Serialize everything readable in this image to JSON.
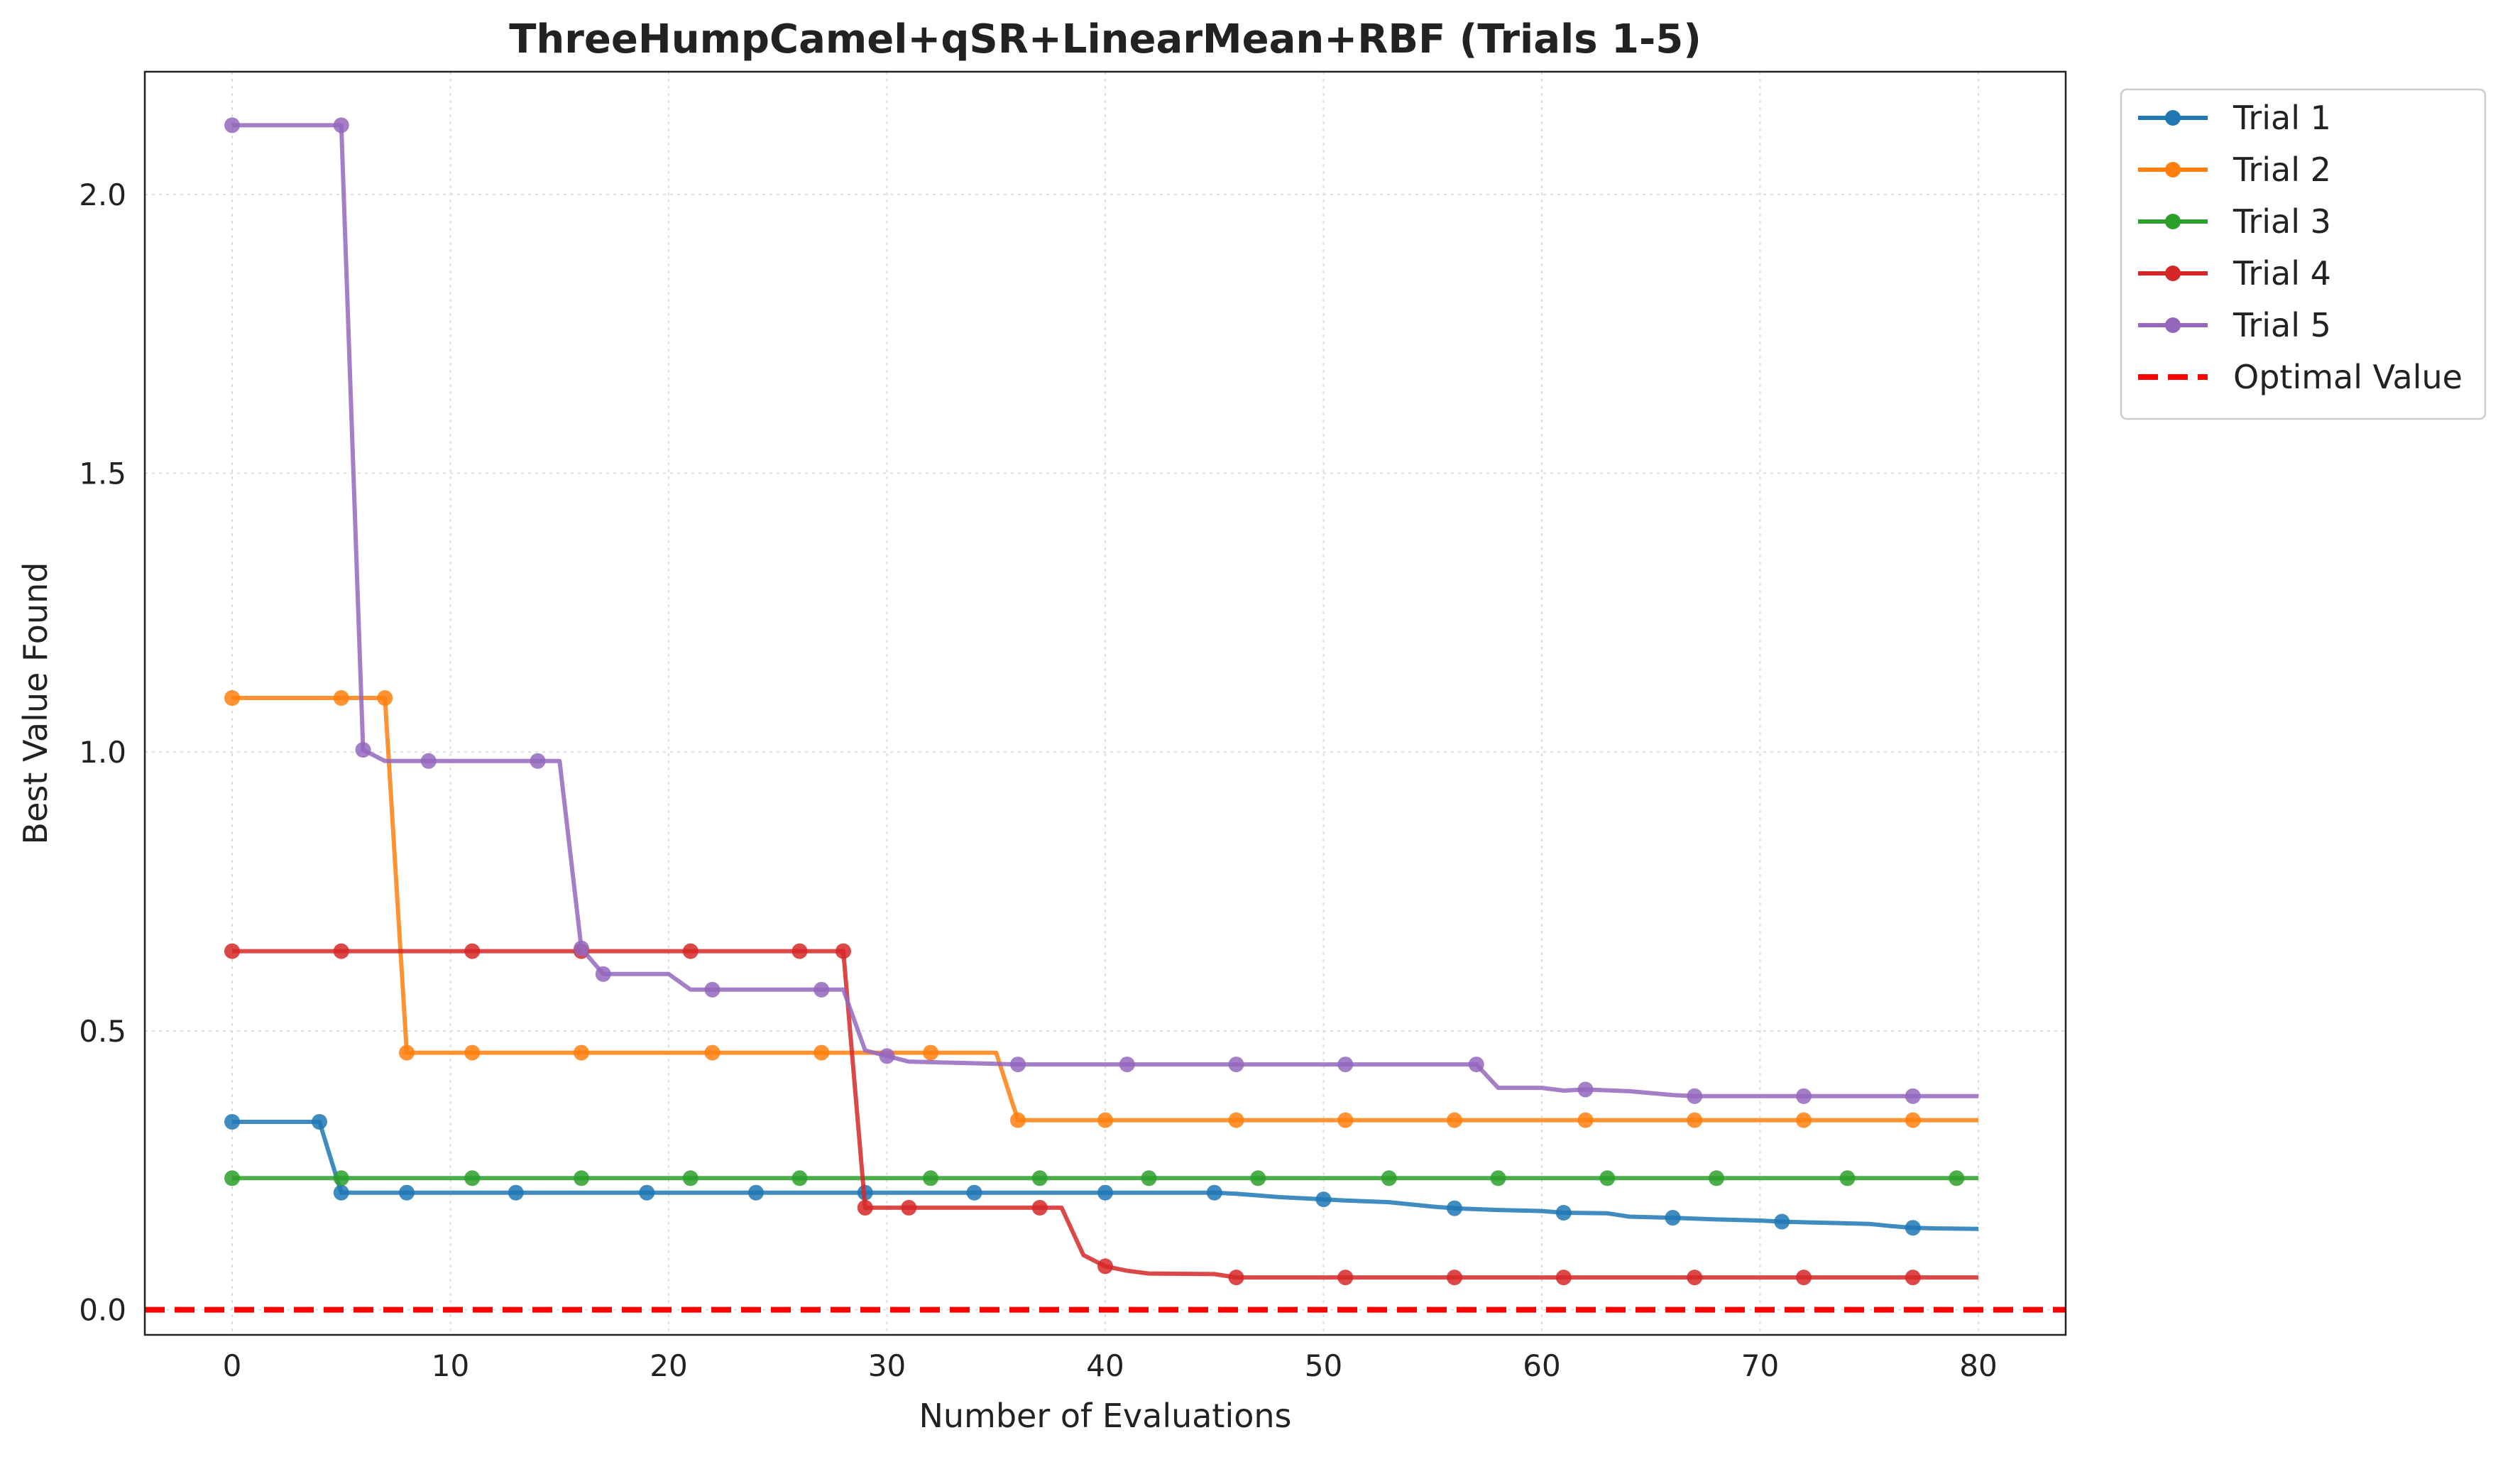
{
  "chart_data": {
    "type": "line",
    "title": "ThreeHumpCamel+qSR+LinearMean+RBF (Trials 1-5)",
    "xlabel": "Number of Evaluations",
    "ylabel": "Best Value Found",
    "xlim": [
      -4,
      84
    ],
    "ylim": [
      -0.045,
      2.22
    ],
    "xticks": [
      0,
      10,
      20,
      30,
      40,
      50,
      60,
      70,
      80
    ],
    "xtick_labels": [
      "0",
      "10",
      "20",
      "30",
      "40",
      "50",
      "60",
      "70",
      "80"
    ],
    "yticks": [
      0.0,
      0.5,
      1.0,
      1.5,
      2.0
    ],
    "ytick_labels": [
      "0.0",
      "0.5",
      "1.0",
      "1.5",
      "2.0"
    ],
    "grid": true,
    "legend_position": "outside-top-right",
    "series": [
      {
        "name": "Trial 1",
        "color": "#1f77b4",
        "points": [
          [
            0,
            0.337
          ],
          [
            4,
            0.337
          ],
          [
            5,
            0.21
          ],
          [
            29,
            0.21
          ],
          [
            45,
            0.21
          ],
          [
            46,
            0.208
          ],
          [
            48,
            0.202
          ],
          [
            50,
            0.198
          ],
          [
            51,
            0.196
          ],
          [
            53,
            0.193
          ],
          [
            55,
            0.185
          ],
          [
            56,
            0.182
          ],
          [
            58,
            0.179
          ],
          [
            60,
            0.177
          ],
          [
            61,
            0.174
          ],
          [
            63,
            0.173
          ],
          [
            64,
            0.167
          ],
          [
            66,
            0.165
          ],
          [
            68,
            0.162
          ],
          [
            70,
            0.16
          ],
          [
            71,
            0.158
          ],
          [
            73,
            0.156
          ],
          [
            75,
            0.154
          ],
          [
            76,
            0.15
          ],
          [
            77,
            0.147
          ],
          [
            78,
            0.146
          ],
          [
            80,
            0.145
          ]
        ],
        "markers": [
          0,
          4,
          5,
          8,
          13,
          19,
          24,
          29,
          34,
          40,
          45,
          50,
          56,
          61,
          66,
          71,
          77
        ]
      },
      {
        "name": "Trial 2",
        "color": "#ff7f0e",
        "points": [
          [
            0,
            1.097
          ],
          [
            7,
            1.097
          ],
          [
            8,
            0.461
          ],
          [
            35,
            0.461
          ],
          [
            36,
            0.34
          ],
          [
            80,
            0.34
          ]
        ],
        "markers": [
          0,
          5,
          7,
          8,
          11,
          16,
          22,
          27,
          32,
          36,
          40,
          46,
          51,
          56,
          62,
          67,
          72,
          77
        ]
      },
      {
        "name": "Trial 3",
        "color": "#2ca02c",
        "points": [
          [
            0,
            0.236
          ],
          [
            80,
            0.236
          ]
        ],
        "markers": [
          0,
          5,
          11,
          16,
          21,
          26,
          32,
          37,
          42,
          47,
          53,
          58,
          63,
          68,
          74,
          79
        ]
      },
      {
        "name": "Trial 4",
        "color": "#d62728",
        "points": [
          [
            0,
            0.643
          ],
          [
            28,
            0.643
          ],
          [
            29,
            0.183
          ],
          [
            38,
            0.183
          ],
          [
            39,
            0.098
          ],
          [
            40,
            0.078
          ],
          [
            41,
            0.07
          ],
          [
            42,
            0.065
          ],
          [
            45,
            0.064
          ],
          [
            46,
            0.058
          ],
          [
            80,
            0.058
          ]
        ],
        "markers": [
          0,
          5,
          11,
          16,
          21,
          26,
          28,
          29,
          31,
          37,
          40,
          46,
          51,
          56,
          61,
          67,
          72,
          77
        ]
      },
      {
        "name": "Trial 5",
        "color": "#9467bd",
        "points": [
          [
            0,
            2.124
          ],
          [
            5,
            2.124
          ],
          [
            6,
            1.004
          ],
          [
            7,
            0.984
          ],
          [
            15,
            0.984
          ],
          [
            16,
            0.648
          ],
          [
            17,
            0.602
          ],
          [
            20,
            0.602
          ],
          [
            21,
            0.574
          ],
          [
            28,
            0.574
          ],
          [
            29,
            0.465
          ],
          [
            31,
            0.445
          ],
          [
            36,
            0.44
          ],
          [
            57,
            0.44
          ],
          [
            58,
            0.398
          ],
          [
            60,
            0.398
          ],
          [
            61,
            0.393
          ],
          [
            62,
            0.395
          ],
          [
            64,
            0.392
          ],
          [
            66,
            0.385
          ],
          [
            67,
            0.383
          ],
          [
            80,
            0.383
          ]
        ],
        "markers": [
          0,
          5,
          6,
          9,
          14,
          16,
          17,
          22,
          27,
          30,
          36,
          41,
          46,
          51,
          57,
          62,
          67,
          72,
          77
        ]
      }
    ],
    "reference_lines": [
      {
        "name": "Optimal Value",
        "y": 0.0,
        "color": "#ff0000",
        "style": "dashed"
      }
    ]
  }
}
